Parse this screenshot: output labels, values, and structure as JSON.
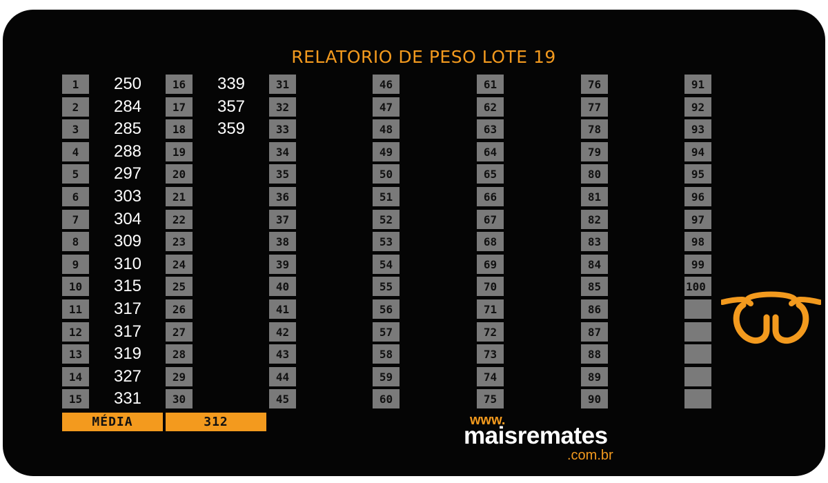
{
  "title": "RELATORIO DE PESO LOTE 19",
  "weights": [
    {
      "num": "1",
      "value": "250"
    },
    {
      "num": "2",
      "value": "284"
    },
    {
      "num": "3",
      "value": "285"
    },
    {
      "num": "4",
      "value": "288"
    },
    {
      "num": "5",
      "value": "297"
    },
    {
      "num": "6",
      "value": "303"
    },
    {
      "num": "7",
      "value": "304"
    },
    {
      "num": "8",
      "value": "309"
    },
    {
      "num": "9",
      "value": "310"
    },
    {
      "num": "10",
      "value": "315"
    },
    {
      "num": "11",
      "value": "317"
    },
    {
      "num": "12",
      "value": "317"
    },
    {
      "num": "13",
      "value": "319"
    },
    {
      "num": "14",
      "value": "327"
    },
    {
      "num": "15",
      "value": "331"
    },
    {
      "num": "16",
      "value": "339"
    },
    {
      "num": "17",
      "value": "357"
    },
    {
      "num": "18",
      "value": "359"
    }
  ],
  "max_number": 100,
  "summary": {
    "label": "MÉDIA",
    "value": "312"
  },
  "brand": {
    "www": "www.",
    "name": "maisremates",
    "tld": ".com.br"
  },
  "colors": {
    "accent": "#f39a1e",
    "box": "#7a7a7a",
    "background": "#050505"
  },
  "logo_icon": "bull-head-icon"
}
